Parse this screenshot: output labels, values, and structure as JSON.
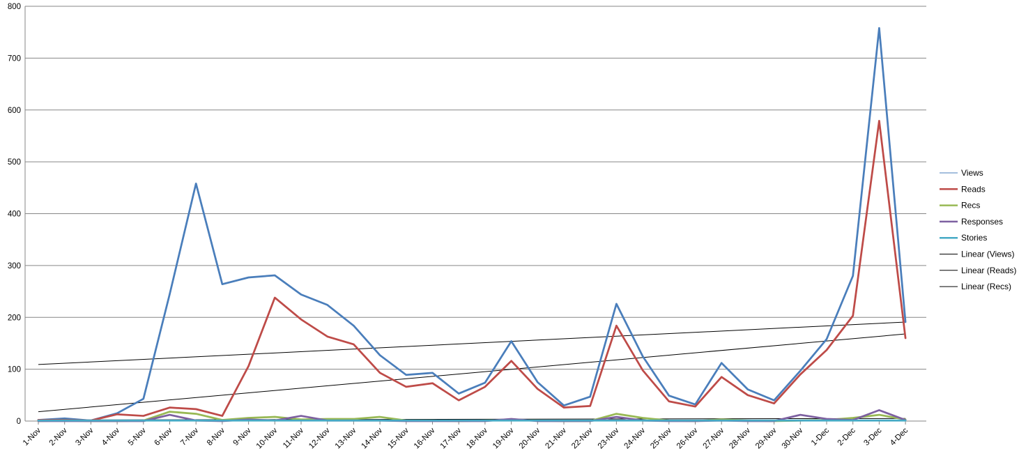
{
  "chart_data": {
    "type": "line",
    "title": "",
    "xlabel": "",
    "ylabel": "",
    "ylim": [
      0,
      800
    ],
    "yticks": [
      0,
      100,
      200,
      300,
      400,
      500,
      600,
      700,
      800
    ],
    "grid": true,
    "legend_position": "right",
    "categories": [
      "1-Nov",
      "2-Nov",
      "3-Nov",
      "4-Nov",
      "5-Nov",
      "6-Nov",
      "7-Nov",
      "8-Nov",
      "9-Nov",
      "10-Nov",
      "11-Nov",
      "12-Nov",
      "13-Nov",
      "14-Nov",
      "15-Nov",
      "16-Nov",
      "17-Nov",
      "18-Nov",
      "19-Nov",
      "20-Nov",
      "21-Nov",
      "22-Nov",
      "23-Nov",
      "24-Nov",
      "25-Nov",
      "26-Nov",
      "27-Nov",
      "28-Nov",
      "29-Nov",
      "30-Nov",
      "1-Dec",
      "2-Dec",
      "3-Dec",
      "4-Dec"
    ],
    "series": [
      {
        "name": "Views",
        "color": "#4a7ebb",
        "values": [
          2,
          5,
          1,
          15,
          43,
          245,
          458,
          264,
          277,
          281,
          244,
          224,
          184,
          127,
          89,
          93,
          53,
          74,
          154,
          75,
          30,
          47,
          226,
          125,
          49,
          32,
          112,
          61,
          40,
          97,
          158,
          280,
          758,
          191
        ]
      },
      {
        "name": "Reads",
        "color": "#be4b48",
        "values": [
          2,
          2,
          1,
          13,
          10,
          26,
          23,
          10,
          106,
          238,
          196,
          163,
          148,
          93,
          66,
          73,
          40,
          66,
          116,
          62,
          26,
          29,
          184,
          98,
          38,
          28,
          85,
          50,
          34,
          90,
          137,
          203,
          579,
          160
        ]
      },
      {
        "name": "Recs",
        "color": "#98b954",
        "values": [
          0,
          1,
          0,
          0,
          1,
          18,
          14,
          2,
          6,
          8,
          3,
          4,
          4,
          8,
          1,
          1,
          0,
          1,
          2,
          1,
          0,
          0,
          14,
          6,
          1,
          0,
          3,
          1,
          0,
          1,
          2,
          6,
          12,
          3
        ]
      },
      {
        "name": "Responses",
        "color": "#7d60a0",
        "values": [
          0,
          0,
          0,
          0,
          0,
          12,
          1,
          0,
          3,
          1,
          10,
          1,
          1,
          1,
          0,
          0,
          0,
          0,
          4,
          0,
          0,
          0,
          8,
          1,
          0,
          0,
          1,
          0,
          0,
          12,
          4,
          2,
          21,
          2
        ]
      },
      {
        "name": "Stories",
        "color": "#46aac5",
        "values": [
          1,
          1,
          1,
          1,
          1,
          1,
          1,
          1,
          1,
          1,
          1,
          1,
          1,
          1,
          1,
          1,
          1,
          1,
          1,
          1,
          1,
          1,
          1,
          1,
          1,
          1,
          1,
          1,
          1,
          1,
          1,
          1,
          1,
          1
        ]
      }
    ],
    "trendlines": [
      {
        "name": "Linear (Views)",
        "color": "#000000",
        "start": 109,
        "end": 191
      },
      {
        "name": "Linear (Reads)",
        "color": "#000000",
        "start": 18,
        "end": 168
      },
      {
        "name": "Linear (Recs)",
        "color": "#000000",
        "start": 2,
        "end": 5
      }
    ],
    "legend": [
      {
        "label": "Views",
        "color": "#4a7ebb",
        "width": 1
      },
      {
        "label": "Reads",
        "color": "#be4b48",
        "width": 2.5
      },
      {
        "label": "Recs",
        "color": "#98b954",
        "width": 2.5
      },
      {
        "label": "Responses",
        "color": "#7d60a0",
        "width": 2.5
      },
      {
        "label": "Stories",
        "color": "#46aac5",
        "width": 2.5
      },
      {
        "label": "Linear (Views)",
        "color": "#000000",
        "width": 1
      },
      {
        "label": "Linear (Reads)",
        "color": "#000000",
        "width": 1
      },
      {
        "label": "Linear (Recs)",
        "color": "#000000",
        "width": 1
      }
    ]
  }
}
